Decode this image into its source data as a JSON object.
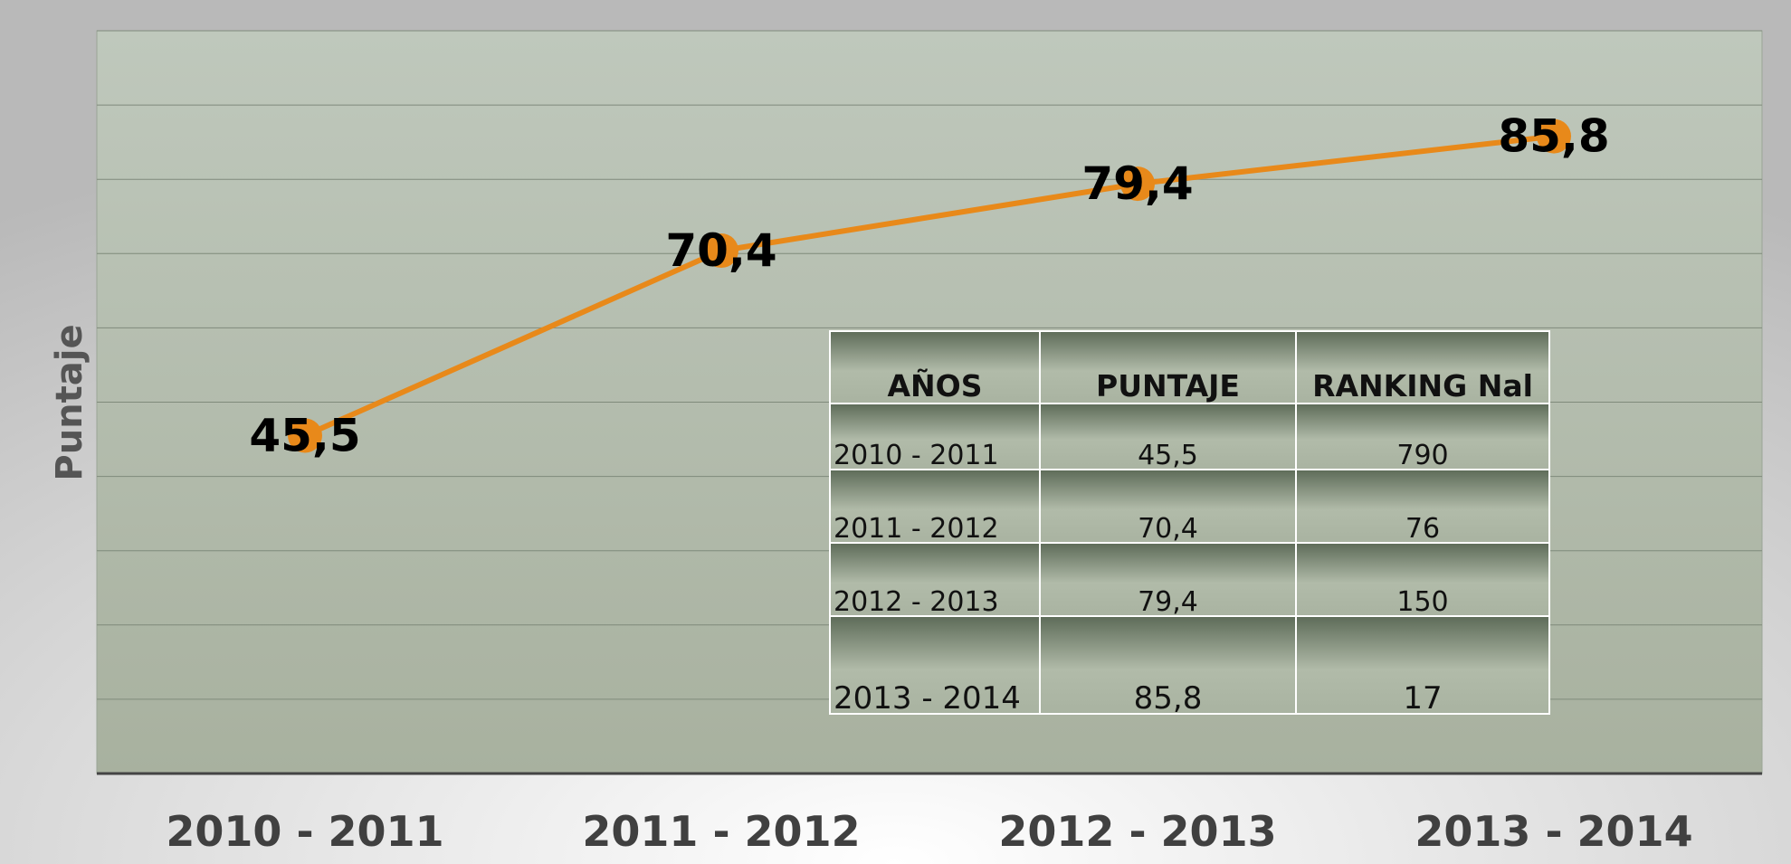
{
  "chart_data": {
    "type": "line",
    "y_label": "Puntaje",
    "categories": [
      "2010 - 2011",
      "2011 - 2012",
      "2012 - 2013",
      "2013 - 2014"
    ],
    "values": [
      45.5,
      70.4,
      79.4,
      85.8
    ],
    "value_labels": [
      "45,5",
      "70,4",
      "79,4",
      "85,8"
    ],
    "color": "#e8891a",
    "ylim": [
      0,
      100
    ],
    "yticks": [
      0,
      10,
      20,
      30,
      40,
      50,
      60,
      70,
      80,
      90,
      100
    ],
    "grid": true
  },
  "table": {
    "header": [
      "AÑOS",
      "PUNTAJE",
      "RANKING Nal"
    ],
    "rows": [
      [
        "2010 - 2011",
        "45,5",
        "790"
      ],
      [
        "2011 - 2012",
        "70,4",
        "76"
      ],
      [
        "2012 - 2013",
        "79,4",
        "150"
      ],
      [
        "2013 - 2014",
        "85,8",
        "17"
      ]
    ]
  }
}
